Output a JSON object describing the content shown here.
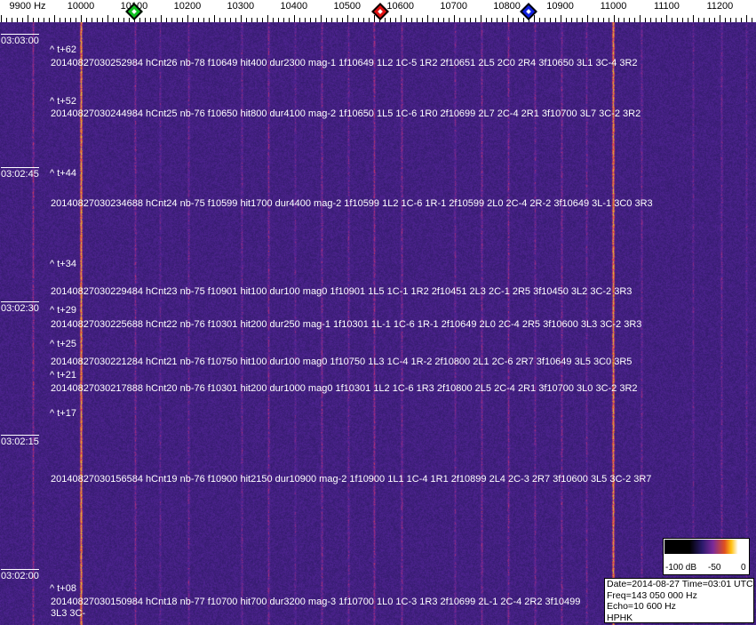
{
  "frequency_axis": {
    "labels": [
      {
        "text": "9900 Hz",
        "freq": 9900
      },
      {
        "text": "10000",
        "freq": 10000
      },
      {
        "text": "10100",
        "freq": 10100
      },
      {
        "text": "10200",
        "freq": 10200
      },
      {
        "text": "10300",
        "freq": 10300
      },
      {
        "text": "10400",
        "freq": 10400
      },
      {
        "text": "10500",
        "freq": 10500
      },
      {
        "text": "10600",
        "freq": 10600
      },
      {
        "text": "10700",
        "freq": 10700
      },
      {
        "text": "10800",
        "freq": 10800
      },
      {
        "text": "10900",
        "freq": 10900
      },
      {
        "text": "11000",
        "freq": 11000
      },
      {
        "text": "11100",
        "freq": 11100
      },
      {
        "text": "11200",
        "freq": 11200
      }
    ]
  },
  "markers": [
    {
      "name": "green",
      "freq": 10100,
      "color": "#10c020"
    },
    {
      "name": "red",
      "freq": 10562,
      "color": "#e01010"
    },
    {
      "name": "blue",
      "freq": 10840,
      "color": "#1020e0"
    }
  ],
  "time_labels": [
    {
      "text": "03:03:00",
      "sec": 180
    },
    {
      "text": "03:02:45",
      "sec": 165
    },
    {
      "text": "03:02:30",
      "sec": 150
    },
    {
      "text": "03:02:15",
      "sec": 135
    },
    {
      "text": "03:02:00",
      "sec": 120
    }
  ],
  "relative_labels": [
    "^ t+62",
    "^ t+52",
    "^ t+44",
    "^ t+34",
    "^ t+29",
    "^ t+25",
    "^ t+21",
    "^ t+17",
    "^ t+08"
  ],
  "hits": [
    "20140827030252984 hCnt26 nb-78 f10649 hit400 dur2300 mag-1 1f10649 1L2 1C-5 1R2 2f10651 2L5 2C0 2R4 3f10650 3L1 3C-4 3R2",
    "20140827030244984 hCnt25 nb-76 f10650 hit800 dur4100 mag-2 1f10650 1L5 1C-6 1R0 2f10699 2L7 2C-4 2R1 3f10700 3L7 3C-2 3R2",
    "20140827030234688 hCnt24 nb-75 f10599 hit1700 dur4400 mag-2 1f10599 1L2 1C-6 1R-1 2f10599 2L0 2C-4 2R-2 3f10649 3L-1 3C0 3R3",
    "20140827030229484 hCnt23 nb-75 f10901 hit100 dur100 mag0 1f10901 1L5 1C-1 1R2 2f10451 2L3 2C-1 2R5 3f10450 3L2 3C-2 3R3",
    "20140827030225688 hCnt22 nb-76 f10301 hit200 dur250 mag-1 1f10301 1L-1 1C-6 1R-1 2f10649 2L0 2C-4 2R5 3f10600 3L3 3C-2 3R3",
    "20140827030221284 hCnt21 nb-76 f10750 hit100 dur100 mag0 1f10750 1L3 1C-4 1R-2 2f10800 2L1 2C-6 2R7 3f10649 3L5 3C0 3R5",
    "20140827030217888 hCnt20 nb-76 f10301 hit200 dur1000 mag0 1f10301 1L2 1C-6 1R3 2f10800 2L5 2C-4 2R1 3f10700 3L0 3C-2 3R2",
    "20140827030156584 hCnt19 nb-76 f10900 hit2150 dur10900 mag-2 1f10900 1L1 1C-4 1R1 2f10899 2L4 2C-3 2R7 3f10600 3L5 3C-2 3R7",
    "20140827030150984 hCnt18 nb-77 f10700 hit700 dur3200 mag-3 1f10700 1L0 1C-3 1R3 2f10699 2L-1 2C-4 2R2 3f10499 3L3 3C-"
  ],
  "colorbar": {
    "min_label": "-100 dB",
    "mid_label": "-50",
    "max_label": "0"
  },
  "info": {
    "date_time": "Date=2014-08-27 Time=03:01 UTC",
    "freq": "Freq=143 050 000 Hz",
    "echo": "Echo=10 600 Hz",
    "station": "HPHK"
  }
}
